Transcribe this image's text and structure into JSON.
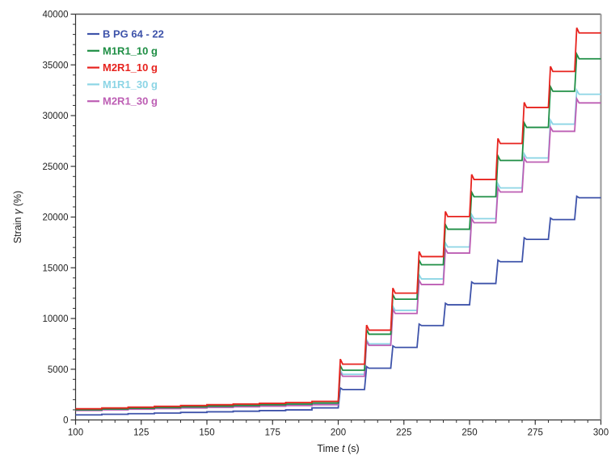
{
  "figure": {
    "background": "#ffffff",
    "frame_colors": {
      "left": "#333333",
      "bottom": "#333333",
      "top": "#555555",
      "right": "#999999"
    }
  },
  "axis_labels": {
    "x": {
      "pre": "Time ",
      "var": "t",
      "post": " (s)"
    },
    "y": {
      "pre": "Strain ",
      "var": "γ",
      "post": "  (%)"
    }
  },
  "chart_data": {
    "type": "line",
    "title": "",
    "xlabel": "Time t (s)",
    "ylabel": "Strain γ (%)",
    "xlim": [
      100,
      300
    ],
    "ylim": [
      0,
      40000
    ],
    "x_major_ticks": [
      100,
      125,
      150,
      175,
      200,
      225,
      250,
      275,
      300
    ],
    "x_minor_step": 5,
    "y_major_ticks": [
      0,
      5000,
      10000,
      15000,
      20000,
      25000,
      30000,
      35000,
      40000
    ],
    "y_minor_step": 1000,
    "grid": false,
    "legend_position": "top-left-inside",
    "pre_step_times": [
      100,
      110,
      120,
      130,
      140,
      150,
      160,
      170,
      180,
      190
    ],
    "cycle_end_times": [
      210,
      220,
      230,
      240,
      250,
      260,
      270,
      280,
      290,
      300
    ],
    "series": [
      {
        "name": "B PG 64 - 22",
        "color": "#3e53aa",
        "pre_step_values": [
          500,
          560,
          620,
          680,
          740,
          800,
          860,
          920,
          990,
          1190
        ],
        "cycle_plateaus": [
          3000,
          5100,
          7150,
          9300,
          11350,
          13450,
          15600,
          17800,
          19750,
          21900
        ],
        "peak_overshoot": 150
      },
      {
        "name": "M1R1_10 g",
        "color": "#1e8e44",
        "pre_step_values": [
          1000,
          1075,
          1150,
          1220,
          1290,
          1360,
          1430,
          1500,
          1570,
          1670
        ],
        "cycle_plateaus": [
          4900,
          8450,
          11900,
          15300,
          18800,
          22000,
          25580,
          28840,
          32400,
          35600
        ],
        "peak_overshoot": 450
      },
      {
        "name": "M2R1_10 g",
        "color": "#e7231e",
        "pre_step_values": [
          1100,
          1180,
          1260,
          1340,
          1420,
          1500,
          1570,
          1640,
          1720,
          1830
        ],
        "cycle_plateaus": [
          5500,
          8850,
          12500,
          16100,
          20050,
          23700,
          27250,
          30800,
          34350,
          38150
        ],
        "peak_overshoot": 500
      },
      {
        "name": "M1R1_30 g",
        "color": "#8cd5e5",
        "pre_step_values": [
          950,
          1020,
          1085,
          1150,
          1215,
          1280,
          1340,
          1400,
          1460,
          1540
        ],
        "cycle_plateaus": [
          4500,
          7500,
          10800,
          13900,
          17050,
          19840,
          22870,
          25820,
          29160,
          32100
        ],
        "peak_overshoot": 400
      },
      {
        "name": "M2R1_30 g",
        "color": "#bd5eb4",
        "pre_step_values": [
          930,
          1000,
          1060,
          1120,
          1180,
          1240,
          1300,
          1360,
          1420,
          1500
        ],
        "cycle_plateaus": [
          4300,
          7350,
          10500,
          13350,
          16450,
          19440,
          22470,
          25420,
          28450,
          31250
        ],
        "peak_overshoot": 400
      }
    ],
    "legend_items": [
      "B PG 64 - 22",
      "M1R1_10 g",
      "M2R1_10 g",
      "M1R1_30 g",
      "M2R1_30 g"
    ]
  }
}
